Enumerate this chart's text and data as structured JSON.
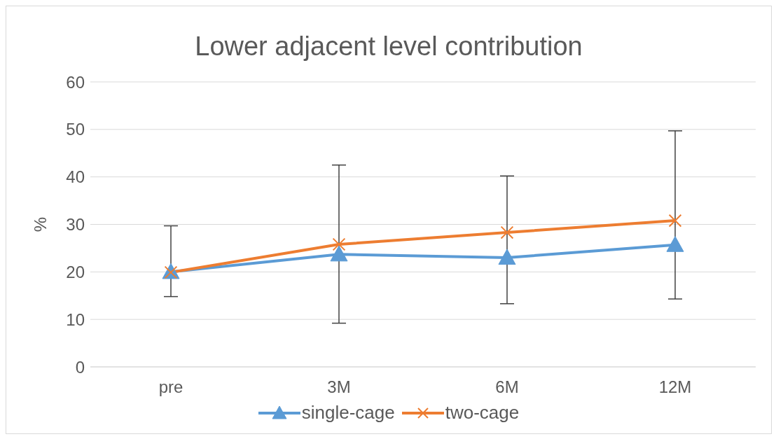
{
  "chart_data": {
    "type": "line",
    "title": "Lower adjacent level contribution",
    "ylabel": "%",
    "categories": [
      "pre",
      "3M",
      "6M",
      "12M"
    ],
    "series": [
      {
        "name": "single-cage",
        "color": "#5b9bd5",
        "marker": "triangle",
        "values": [
          20.0,
          23.7,
          23.0,
          25.7
        ]
      },
      {
        "name": "two-cage",
        "color": "#ed7d31",
        "marker": "cross",
        "values": [
          19.9,
          25.8,
          28.3,
          30.8
        ],
        "errors": [
          [
            14.8,
            29.7
          ],
          [
            9.2,
            42.5
          ],
          [
            13.3,
            40.2
          ],
          [
            14.3,
            49.7
          ]
        ]
      }
    ],
    "ylim": [
      0,
      60
    ],
    "yticks": [
      0,
      10,
      20,
      30,
      40,
      50,
      60
    ],
    "grid": "y",
    "legend": "bottom",
    "line_style": "solid"
  }
}
